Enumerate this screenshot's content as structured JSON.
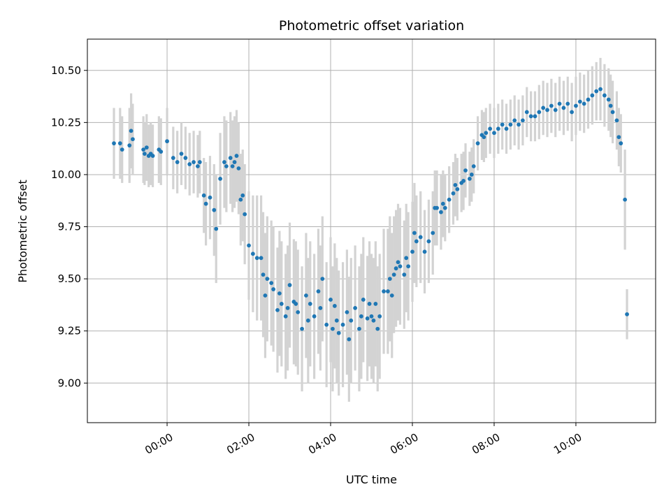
{
  "chart_data": {
    "type": "scatter",
    "title": "Photometric offset variation",
    "xlabel": "UTC time",
    "ylabel": "Photometric offset",
    "x_unit": "hours UTC",
    "xlim": [
      -1.95,
      11.95
    ],
    "ylim": [
      8.81,
      10.65
    ],
    "grid": true,
    "x_ticks": [
      {
        "value": 0,
        "label": "00:00"
      },
      {
        "value": 2,
        "label": "02:00"
      },
      {
        "value": 4,
        "label": "04:00"
      },
      {
        "value": 6,
        "label": "06:00"
      },
      {
        "value": 8,
        "label": "08:00"
      },
      {
        "value": 10,
        "label": "10:00"
      }
    ],
    "y_ticks": [
      {
        "value": 9.0,
        "label": "9.00"
      },
      {
        "value": 9.25,
        "label": "9.25"
      },
      {
        "value": 9.5,
        "label": "9.50"
      },
      {
        "value": 9.75,
        "label": "9.75"
      },
      {
        "value": 10.0,
        "label": "10.00"
      },
      {
        "value": 10.25,
        "label": "10.25"
      },
      {
        "value": 10.5,
        "label": "10.50"
      }
    ],
    "colors": {
      "points": "#1f77b4",
      "errorbars": "#d3d3d3",
      "grid": "#b0b0b0"
    },
    "x": [
      -1.3,
      -1.15,
      -1.1,
      -0.92,
      -0.88,
      -0.84,
      -0.58,
      -0.55,
      -0.5,
      -0.45,
      -0.4,
      -0.35,
      -0.2,
      -0.15,
      0.0,
      0.15,
      0.25,
      0.35,
      0.45,
      0.55,
      0.65,
      0.75,
      0.8,
      0.9,
      0.95,
      1.05,
      1.15,
      1.2,
      1.3,
      1.4,
      1.45,
      1.55,
      1.6,
      1.65,
      1.7,
      1.75,
      1.8,
      1.85,
      1.9,
      2.0,
      2.1,
      2.2,
      2.3,
      2.35,
      2.4,
      2.45,
      2.55,
      2.6,
      2.7,
      2.75,
      2.8,
      2.9,
      2.95,
      3.0,
      3.1,
      3.15,
      3.2,
      3.3,
      3.4,
      3.45,
      3.5,
      3.6,
      3.7,
      3.75,
      3.8,
      3.9,
      4.0,
      4.05,
      4.1,
      4.15,
      4.2,
      4.3,
      4.4,
      4.45,
      4.5,
      4.6,
      4.7,
      4.75,
      4.8,
      4.9,
      4.95,
      5.0,
      5.05,
      5.1,
      5.15,
      5.2,
      5.3,
      5.4,
      5.45,
      5.5,
      5.55,
      5.6,
      5.65,
      5.7,
      5.8,
      5.85,
      5.9,
      6.0,
      6.05,
      6.1,
      6.2,
      6.3,
      6.4,
      6.5,
      6.55,
      6.6,
      6.7,
      6.75,
      6.8,
      6.9,
      7.0,
      7.05,
      7.1,
      7.2,
      7.25,
      7.3,
      7.4,
      7.45,
      7.5,
      7.6,
      7.7,
      7.75,
      7.8,
      7.9,
      8.0,
      8.1,
      8.2,
      8.3,
      8.4,
      8.5,
      8.6,
      8.7,
      8.8,
      8.9,
      9.0,
      9.1,
      9.2,
      9.3,
      9.4,
      9.5,
      9.6,
      9.7,
      9.8,
      9.9,
      10.0,
      10.1,
      10.2,
      10.3,
      10.4,
      10.5,
      10.6,
      10.7,
      10.8,
      10.85,
      10.9,
      11.0,
      11.05,
      11.1,
      11.2,
      11.25
    ],
    "y": [
      10.15,
      10.15,
      10.12,
      10.14,
      10.21,
      10.17,
      10.12,
      10.1,
      10.13,
      10.09,
      10.1,
      10.09,
      10.12,
      10.11,
      10.16,
      10.08,
      10.06,
      10.1,
      10.08,
      10.05,
      10.06,
      10.04,
      10.06,
      9.9,
      9.86,
      9.89,
      9.83,
      9.74,
      9.98,
      10.06,
      10.04,
      10.08,
      10.04,
      10.06,
      10.09,
      10.03,
      9.88,
      9.9,
      9.81,
      9.66,
      9.62,
      9.6,
      9.6,
      9.52,
      9.42,
      9.5,
      9.48,
      9.45,
      9.35,
      9.43,
      9.38,
      9.32,
      9.36,
      9.47,
      9.39,
      9.38,
      9.34,
      9.26,
      9.42,
      9.3,
      9.38,
      9.32,
      9.44,
      9.36,
      9.5,
      9.28,
      9.4,
      9.26,
      9.37,
      9.3,
      9.24,
      9.28,
      9.34,
      9.21,
      9.3,
      9.36,
      9.26,
      9.32,
      9.4,
      9.31,
      9.38,
      9.32,
      9.3,
      9.38,
      9.26,
      9.32,
      9.44,
      9.44,
      9.5,
      9.42,
      9.52,
      9.55,
      9.58,
      9.56,
      9.52,
      9.6,
      9.56,
      9.63,
      9.72,
      9.68,
      9.7,
      9.63,
      9.68,
      9.72,
      9.84,
      9.84,
      9.82,
      9.86,
      9.84,
      9.88,
      9.91,
      9.95,
      9.93,
      9.96,
      9.97,
      10.02,
      9.98,
      10.0,
      10.04,
      10.15,
      10.19,
      10.18,
      10.2,
      10.22,
      10.2,
      10.22,
      10.24,
      10.22,
      10.24,
      10.26,
      10.24,
      10.26,
      10.3,
      10.28,
      10.28,
      10.3,
      10.32,
      10.31,
      10.33,
      10.31,
      10.34,
      10.32,
      10.34,
      10.3,
      10.33,
      10.35,
      10.34,
      10.36,
      10.38,
      10.4,
      10.41,
      10.38,
      10.36,
      10.33,
      10.3,
      10.26,
      10.18,
      10.15,
      9.88,
      9.33
    ],
    "error": [
      0.17,
      0.17,
      0.16,
      0.18,
      0.18,
      0.17,
      0.16,
      0.15,
      0.16,
      0.15,
      0.15,
      0.15,
      0.16,
      0.16,
      0.16,
      0.15,
      0.15,
      0.15,
      0.15,
      0.15,
      0.15,
      0.15,
      0.15,
      0.18,
      0.2,
      0.2,
      0.22,
      0.26,
      0.22,
      0.22,
      0.22,
      0.22,
      0.22,
      0.22,
      0.22,
      0.22,
      0.22,
      0.22,
      0.24,
      0.26,
      0.28,
      0.3,
      0.3,
      0.3,
      0.3,
      0.3,
      0.3,
      0.3,
      0.3,
      0.3,
      0.3,
      0.3,
      0.3,
      0.3,
      0.3,
      0.3,
      0.3,
      0.3,
      0.3,
      0.3,
      0.3,
      0.3,
      0.3,
      0.3,
      0.3,
      0.3,
      0.3,
      0.3,
      0.3,
      0.3,
      0.3,
      0.3,
      0.3,
      0.3,
      0.3,
      0.3,
      0.3,
      0.3,
      0.3,
      0.3,
      0.3,
      0.3,
      0.3,
      0.3,
      0.3,
      0.3,
      0.3,
      0.3,
      0.3,
      0.3,
      0.28,
      0.28,
      0.28,
      0.28,
      0.26,
      0.26,
      0.26,
      0.24,
      0.24,
      0.22,
      0.22,
      0.2,
      0.2,
      0.2,
      0.18,
      0.18,
      0.18,
      0.16,
      0.16,
      0.16,
      0.15,
      0.15,
      0.15,
      0.14,
      0.14,
      0.13,
      0.13,
      0.13,
      0.13,
      0.13,
      0.12,
      0.12,
      0.12,
      0.12,
      0.12,
      0.12,
      0.12,
      0.12,
      0.12,
      0.12,
      0.12,
      0.12,
      0.12,
      0.12,
      0.12,
      0.13,
      0.13,
      0.13,
      0.13,
      0.13,
      0.13,
      0.13,
      0.13,
      0.14,
      0.14,
      0.14,
      0.14,
      0.14,
      0.14,
      0.14,
      0.15,
      0.15,
      0.15,
      0.15,
      0.15,
      0.14,
      0.14,
      0.14,
      0.24,
      0.12
    ]
  }
}
